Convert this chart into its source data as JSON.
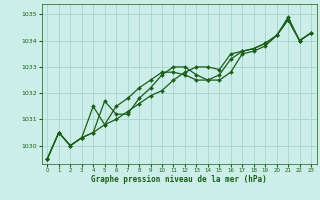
{
  "title": "Graphe pression niveau de la mer (hPa)",
  "bg_color": "#cceee8",
  "grid_color": "#aad8d0",
  "line_color": "#1a5e1a",
  "xlim": [
    -0.5,
    23.5
  ],
  "ylim": [
    1029.3,
    1035.4
  ],
  "yticks": [
    1030,
    1031,
    1032,
    1033,
    1034,
    1035
  ],
  "xticks": [
    0,
    1,
    2,
    3,
    4,
    5,
    6,
    7,
    8,
    9,
    10,
    11,
    12,
    13,
    14,
    15,
    16,
    17,
    18,
    19,
    20,
    21,
    22,
    23
  ],
  "series1": {
    "x": [
      0,
      1,
      2,
      3,
      4,
      5,
      6,
      7,
      8,
      9,
      10,
      11,
      12,
      13,
      14,
      15,
      16,
      17,
      18,
      19,
      20,
      21,
      22,
      23
    ],
    "y": [
      1029.5,
      1030.5,
      1030.0,
      1030.3,
      1030.5,
      1031.7,
      1031.2,
      1031.2,
      1031.8,
      1032.2,
      1032.7,
      1033.0,
      1033.0,
      1032.7,
      1032.5,
      1032.5,
      1032.8,
      1033.5,
      1033.6,
      1033.8,
      1034.2,
      1034.8,
      1034.0,
      1034.3
    ]
  },
  "series2": {
    "x": [
      0,
      1,
      2,
      3,
      4,
      5,
      6,
      7,
      8,
      9,
      10,
      11,
      12,
      13,
      14,
      15,
      16,
      17,
      18,
      19,
      20,
      21,
      22,
      23
    ],
    "y": [
      1029.5,
      1030.5,
      1030.0,
      1030.3,
      1030.5,
      1030.8,
      1031.5,
      1031.8,
      1032.2,
      1032.5,
      1032.8,
      1032.8,
      1032.7,
      1032.5,
      1032.5,
      1032.7,
      1033.3,
      1033.6,
      1033.7,
      1033.9,
      1034.2,
      1034.8,
      1034.0,
      1034.3
    ]
  },
  "series3": {
    "x": [
      0,
      1,
      2,
      3,
      4,
      5,
      6,
      7,
      8,
      9,
      10,
      11,
      12,
      13,
      14,
      15,
      16,
      17,
      18,
      19,
      20,
      21,
      22,
      23
    ],
    "y": [
      1029.5,
      1030.5,
      1030.0,
      1030.3,
      1031.5,
      1030.8,
      1031.0,
      1031.3,
      1031.6,
      1031.9,
      1032.1,
      1032.5,
      1032.8,
      1033.0,
      1033.0,
      1032.9,
      1033.5,
      1033.6,
      1033.7,
      1033.9,
      1034.2,
      1034.9,
      1034.0,
      1034.3
    ]
  }
}
